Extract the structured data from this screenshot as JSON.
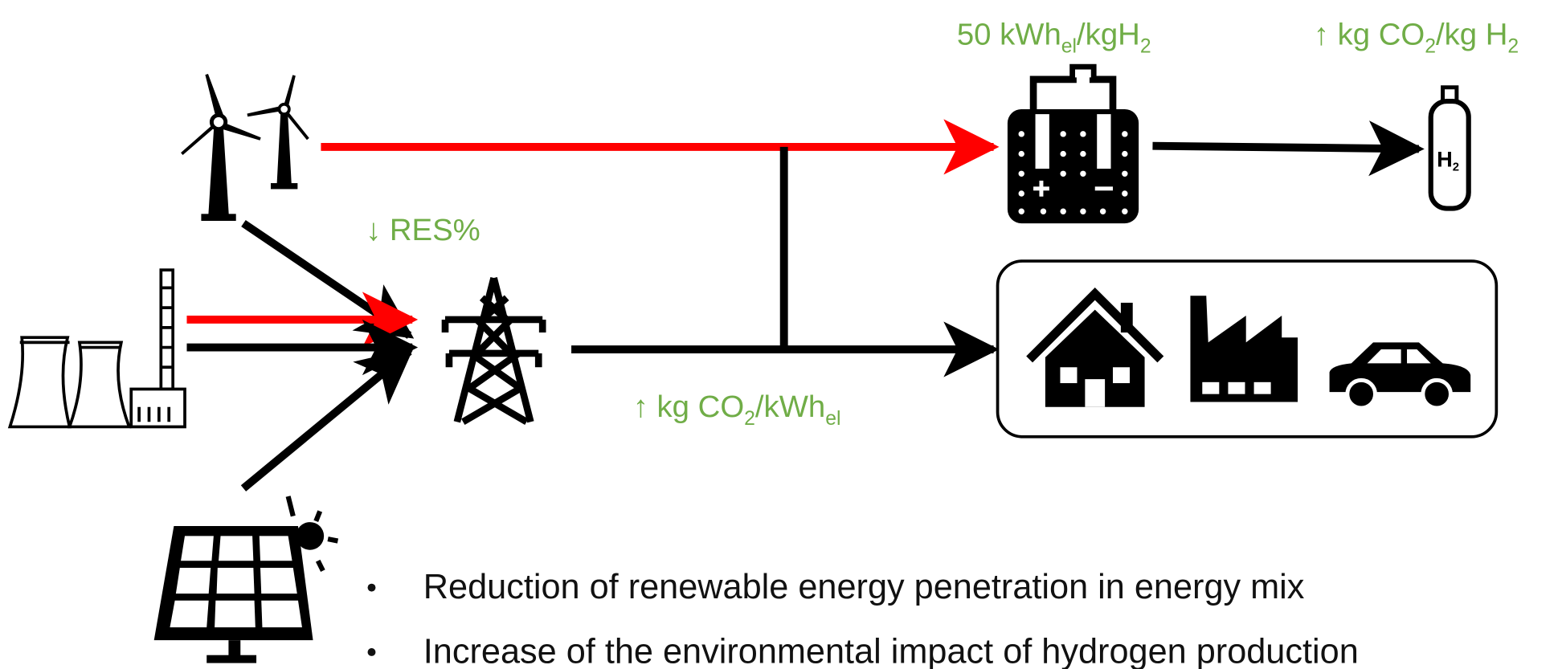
{
  "annotations": {
    "electrolyzer_demand": [
      "50 kWh",
      "el",
      "/kgH",
      "2"
    ],
    "hydrogen_emissions": [
      "↑ kg CO",
      "2",
      "/kg H",
      "2"
    ],
    "res_share": [
      "↓ RES%"
    ],
    "grid_emissions": [
      "↑ kg CO",
      "2",
      "/kWh",
      "el"
    ]
  },
  "tank_label": [
    "H",
    "2"
  ],
  "bullets": [
    "Reduction of renewable energy penetration in energy mix",
    "Increase of the environmental impact of hydrogen production"
  ]
}
